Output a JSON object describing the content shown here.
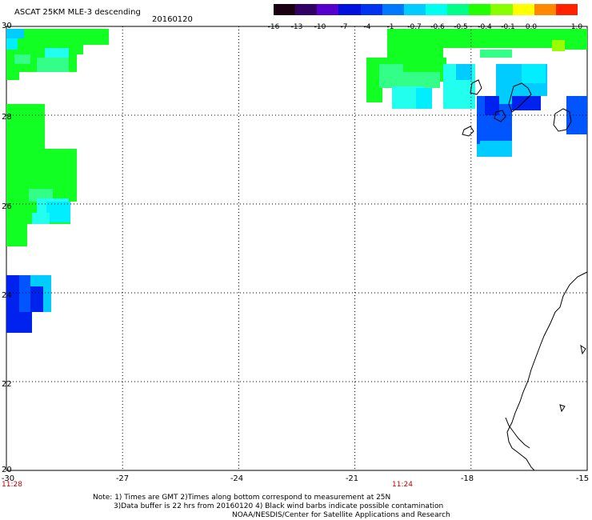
{
  "header": {
    "product_title": "ASCAT 25KM MLE-3 descending",
    "date": "20160120"
  },
  "colorbar": {
    "ticks": [
      "-16",
      "-13",
      "-10",
      "-7",
      "-4",
      "-1",
      "-0.7",
      "-0.6",
      "-0.5",
      "-0.4",
      "-0.1",
      "0.0",
      "1.0"
    ],
    "colors": [
      "#1a0010",
      "#330066",
      "#5500cc",
      "#0011dd",
      "#0033ee",
      "#0077ff",
      "#00ccff",
      "#00ffee",
      "#00ff88",
      "#22ff00",
      "#88ff00",
      "#ffff00",
      "#ff8800",
      "#ff2200"
    ]
  },
  "axes": {
    "lat_labels": [
      "30",
      "28",
      "26",
      "24",
      "22",
      "20"
    ],
    "lon_labels": [
      "-30",
      "-27",
      "-24",
      "-21",
      "-18",
      "-15"
    ],
    "time_labels": [
      "11:28",
      "11:24"
    ]
  },
  "notes": {
    "line1": "Note: 1) Times are GMT 2)Times along bottom correspond to measurement at 25N",
    "line2": "3)Data buffer is 22 hrs from 20160120 4) Black wind barbs indicate possible contamination",
    "line3": "NOAA/NESDIS/Center for Satellite Applications and Research"
  },
  "map": {
    "lat_range": [
      20,
      30
    ],
    "lon_range": [
      -30,
      -15
    ],
    "grid": true,
    "colors": {
      "green": "#11ff22",
      "light_green": "#33ff88",
      "cyan": "#00eeff",
      "light_cyan": "#22ffee",
      "sky": "#00ccff",
      "blue": "#0055ff",
      "deep_blue": "#0022ee",
      "yellow_green": "#99ff00"
    }
  }
}
